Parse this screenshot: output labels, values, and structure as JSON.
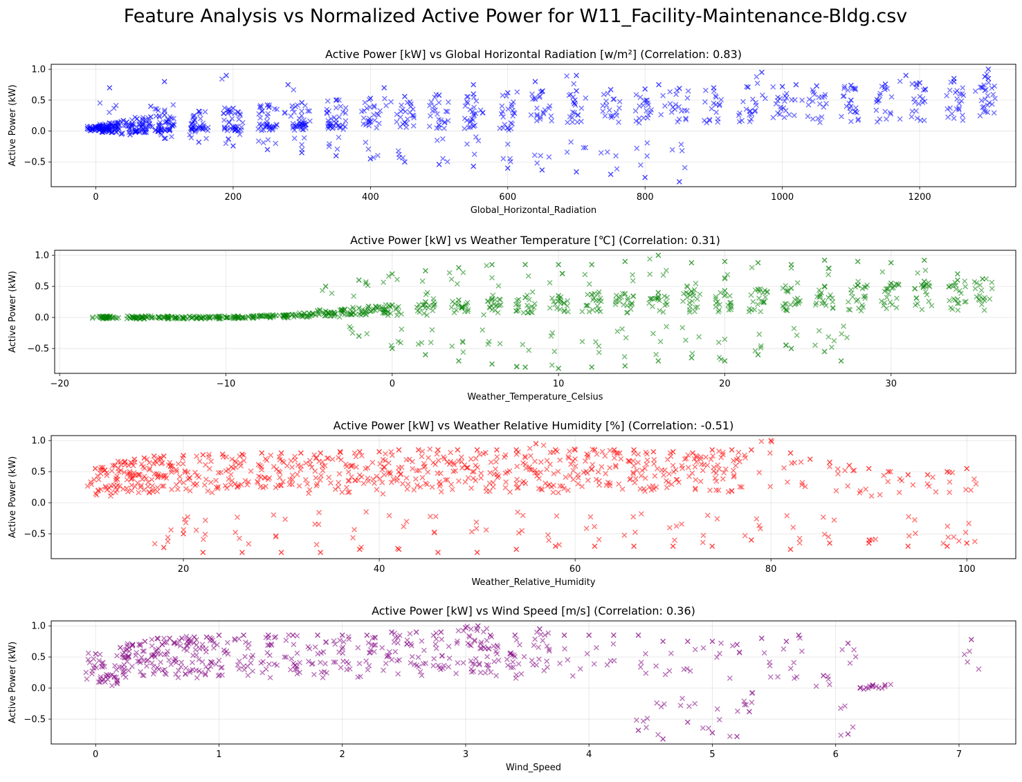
{
  "figure_title": "Feature Analysis vs Normalized Active Power for W11_Facility-Maintenance-Bldg.csv",
  "chart_data": [
    {
      "type": "scatter",
      "title": "Active Power [kW] vs Global Horizontal Radiation [w/m²] (Correlation: 0.83)",
      "xlabel": "Global_Horizontal_Radiation",
      "ylabel": "Active Power (kW)",
      "color": "#0000ff",
      "marker": "x",
      "xlim": [
        -65,
        1340
      ],
      "ylim": [
        -0.9,
        1.08
      ],
      "xticks": [
        0,
        200,
        400,
        600,
        800,
        1000,
        1200
      ],
      "yticks": [
        -0.5,
        0.0,
        0.5,
        1.0
      ],
      "xtick_labels": [
        "0",
        "200",
        "400",
        "600",
        "800",
        "1000",
        "1200"
      ],
      "ytick_labels": [
        "−0.5",
        "0.0",
        "0.5",
        "1.0"
      ],
      "grid": true,
      "series": [
        {
          "x": [
            0,
            5,
            10,
            20,
            40,
            60,
            80,
            100,
            150,
            200,
            250,
            300,
            350,
            400,
            450,
            500,
            550,
            600,
            650,
            700,
            750,
            800,
            850,
            900,
            950,
            1000,
            1050,
            1100,
            1150,
            1200,
            1250,
            1300,
            20,
            60,
            100,
            150,
            200,
            250,
            300,
            350,
            400,
            450,
            500,
            550,
            600,
            10,
            50,
            100,
            150,
            200,
            250,
            300,
            350,
            400,
            450,
            500,
            550,
            600,
            650,
            700,
            750,
            800,
            850,
            20,
            80,
            100,
            190,
            280,
            420,
            550,
            640,
            700,
            820,
            970,
            1020,
            1100,
            1180,
            1250,
            1300,
            1295
          ],
          "y": [
            0.05,
            0.08,
            0.1,
            0.13,
            0.17,
            0.2,
            0.23,
            0.26,
            0.32,
            0.37,
            0.42,
            0.46,
            0.5,
            0.53,
            0.56,
            0.58,
            0.6,
            0.62,
            0.64,
            0.65,
            0.67,
            0.68,
            0.69,
            0.7,
            0.71,
            0.72,
            0.73,
            0.74,
            0.76,
            0.78,
            0.8,
            0.85,
            0.0,
            0.0,
            0.02,
            0.05,
            0.07,
            0.1,
            0.12,
            0.13,
            0.15,
            0.14,
            0.1,
            0.08,
            0.05,
            -0.02,
            -0.06,
            -0.12,
            -0.18,
            -0.24,
            -0.3,
            -0.35,
            -0.4,
            -0.45,
            -0.5,
            -0.54,
            -0.57,
            -0.6,
            -0.63,
            -0.66,
            -0.7,
            -0.75,
            -0.82,
            0.7,
            0.4,
            0.8,
            0.9,
            0.75,
            0.7,
            0.75,
            0.8,
            0.9,
            0.75,
            0.95,
            0.75,
            0.5,
            0.9,
            0.85,
            1.0,
            0.88
          ]
        }
      ]
    },
    {
      "type": "scatter",
      "title": "Active Power [kW] vs Weather Temperature [℃] (Correlation: 0.31)",
      "xlabel": "Weather_Temperature_Celsius",
      "ylabel": "Active Power (kW)",
      "color": "#008000",
      "marker": "x",
      "xlim": [
        -20.3,
        37.5
      ],
      "ylim": [
        -0.9,
        1.08
      ],
      "xticks": [
        -20,
        -10,
        0,
        10,
        20,
        30
      ],
      "yticks": [
        -0.5,
        0.0,
        0.5,
        1.0
      ],
      "xtick_labels": [
        "−20",
        "−10",
        "0",
        "10",
        "20",
        "30"
      ],
      "ytick_labels": [
        "−0.5",
        "0.0",
        "0.5",
        "1.0"
      ],
      "grid": true,
      "series": [
        {
          "x": [
            -17.5,
            -17,
            -15.5,
            -15,
            -14,
            -13,
            -12,
            -11,
            -10,
            -9,
            -8,
            -7,
            -6,
            -5,
            -4,
            -3,
            -2,
            -1,
            0,
            2,
            4,
            6,
            8,
            10,
            12,
            14,
            16,
            18,
            20,
            22,
            24,
            26,
            28,
            30,
            32,
            34,
            35.5,
            -4,
            -2,
            0,
            2,
            4,
            6,
            8,
            10,
            12,
            14,
            16,
            18,
            20,
            22,
            24,
            26,
            28,
            30,
            32,
            34,
            -2,
            0,
            2,
            4,
            6,
            8,
            10,
            12,
            14,
            16,
            18,
            20,
            22,
            24,
            26,
            27
          ],
          "y": [
            0.0,
            0.0,
            0.0,
            0.0,
            0.0,
            0.0,
            0.0,
            0.0,
            0.0,
            0.0,
            0.02,
            0.03,
            0.05,
            0.07,
            0.1,
            0.12,
            0.15,
            0.18,
            0.2,
            0.25,
            0.28,
            0.3,
            0.32,
            0.35,
            0.37,
            0.38,
            0.4,
            0.42,
            0.43,
            0.45,
            0.47,
            0.5,
            0.52,
            0.55,
            0.58,
            0.6,
            0.62,
            0.5,
            0.6,
            0.7,
            0.75,
            0.8,
            0.85,
            0.85,
            0.85,
            0.85,
            0.9,
            1.0,
            0.88,
            0.9,
            0.88,
            0.85,
            0.92,
            0.9,
            0.88,
            0.92,
            0.7,
            -0.3,
            -0.5,
            -0.6,
            -0.7,
            -0.75,
            -0.8,
            -0.82,
            -0.8,
            -0.78,
            -0.7,
            -0.65,
            -0.7,
            -0.6,
            -0.5,
            -0.55,
            -0.7
          ]
        }
      ]
    },
    {
      "type": "scatter",
      "title": "Active Power [kW] vs Weather Relative Humidity [%] (Correlation: -0.51)",
      "xlabel": "Weather_Relative_Humidity",
      "ylabel": "Active Power (kW)",
      "color": "#ff0000",
      "marker": "x",
      "xlim": [
        6.5,
        105.0
      ],
      "ylim": [
        -0.9,
        1.08
      ],
      "xticks": [
        20,
        40,
        60,
        80,
        100
      ],
      "yticks": [
        -0.5,
        0.0,
        0.5,
        1.0
      ],
      "xtick_labels": [
        "20",
        "40",
        "60",
        "80",
        "100"
      ],
      "ytick_labels": [
        "−0.5",
        "0.0",
        "0.5",
        "1.0"
      ],
      "grid": true,
      "series": [
        {
          "x": [
            11,
            13,
            14,
            15,
            16,
            17,
            18,
            20,
            22,
            24,
            26,
            28,
            30,
            32,
            34,
            36,
            38,
            40,
            42,
            44,
            46,
            48,
            50,
            52,
            54,
            56,
            58,
            60,
            62,
            64,
            66,
            68,
            70,
            72,
            74,
            76,
            78,
            80,
            82,
            84,
            86,
            88,
            90,
            92,
            94,
            96,
            98,
            100,
            18,
            20,
            22,
            26,
            30,
            34,
            38,
            42,
            46,
            50,
            54,
            58,
            62,
            66,
            70,
            74,
            78,
            82,
            86,
            90,
            94,
            98,
            100
          ],
          "y": [
            0.55,
            0.6,
            0.65,
            0.7,
            0.72,
            0.75,
            0.75,
            0.76,
            0.77,
            0.78,
            0.78,
            0.8,
            0.8,
            0.8,
            0.8,
            0.82,
            0.82,
            0.82,
            0.85,
            0.85,
            0.85,
            0.85,
            0.85,
            0.85,
            0.85,
            0.95,
            0.85,
            0.85,
            0.85,
            0.85,
            0.85,
            0.82,
            0.82,
            0.8,
            0.85,
            0.85,
            0.85,
            1.0,
            0.8,
            0.7,
            0.65,
            0.6,
            0.55,
            0.5,
            0.45,
            0.45,
            0.5,
            0.55,
            -0.72,
            -0.5,
            -0.8,
            -0.8,
            -0.8,
            -0.8,
            -0.75,
            -0.75,
            -0.8,
            -0.8,
            -0.75,
            -0.7,
            -0.7,
            -0.7,
            -0.7,
            -0.7,
            -0.6,
            -0.75,
            -0.65,
            -0.65,
            -0.7,
            -0.7,
            -0.65
          ]
        }
      ]
    },
    {
      "type": "scatter",
      "title": "Active Power [kW] vs Wind Speed [m/s] (Correlation: 0.36)",
      "xlabel": "Wind_Speed",
      "ylabel": "Active Power (kW)",
      "color": "#800080",
      "marker": "x",
      "xlim": [
        -0.36,
        7.46
      ],
      "ylim": [
        -0.9,
        1.08
      ],
      "xticks": [
        0,
        1,
        2,
        3,
        4,
        5,
        6,
        7
      ],
      "yticks": [
        -0.5,
        0.0,
        0.5,
        1.0
      ],
      "xtick_labels": [
        "0",
        "1",
        "2",
        "3",
        "4",
        "5",
        "6",
        "7"
      ],
      "ytick_labels": [
        "−0.5",
        "0.0",
        "0.5",
        "1.0"
      ],
      "grid": true,
      "series": [
        {
          "x": [
            0.0,
            0.1,
            0.2,
            0.3,
            0.4,
            0.5,
            0.6,
            0.7,
            0.8,
            0.9,
            1.0,
            1.2,
            1.4,
            1.6,
            1.8,
            2.0,
            2.2,
            2.4,
            2.6,
            2.8,
            3.0,
            3.1,
            3.2,
            3.4,
            3.6,
            3.8,
            4.0,
            4.2,
            4.4,
            4.6,
            4.8,
            5.0,
            5.2,
            5.4,
            5.6,
            5.7,
            5.9,
            6.1,
            6.2,
            6.3,
            6.4,
            7.1,
            4.4,
            4.6,
            4.8,
            5.0,
            5.2,
            5.3,
            6.1
          ],
          "y": [
            0.55,
            0.2,
            0.65,
            0.7,
            0.75,
            0.8,
            0.8,
            0.8,
            0.82,
            0.82,
            0.85,
            0.85,
            0.85,
            0.85,
            0.85,
            0.85,
            0.85,
            0.9,
            0.9,
            0.9,
            0.97,
            1.0,
            0.85,
            0.85,
            0.95,
            0.85,
            0.85,
            0.85,
            0.85,
            0.75,
            0.75,
            0.75,
            0.7,
            0.8,
            0.75,
            0.85,
            0.2,
            0.72,
            0.0,
            0.05,
            0.05,
            0.78,
            -0.68,
            -0.82,
            -0.55,
            -0.72,
            -0.78,
            -0.38,
            -0.74
          ]
        }
      ]
    }
  ]
}
